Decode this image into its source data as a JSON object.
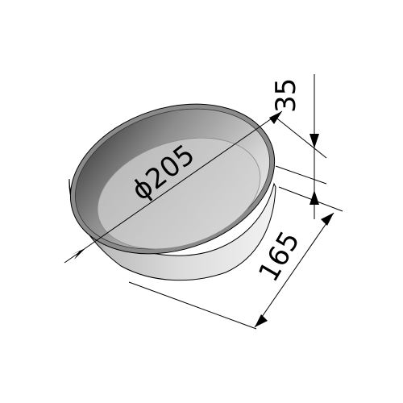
{
  "drawing": {
    "dimensions": {
      "diameter": "ϕ205",
      "height": "35",
      "bottom": "165"
    },
    "colors": {
      "background": "#ffffff",
      "line": "#000000",
      "pan_dark": "#2e2e2e",
      "pan_mid": "#9a9a9a",
      "pan_light": "#e6e6e6",
      "floor": "#cfcfcf"
    }
  }
}
